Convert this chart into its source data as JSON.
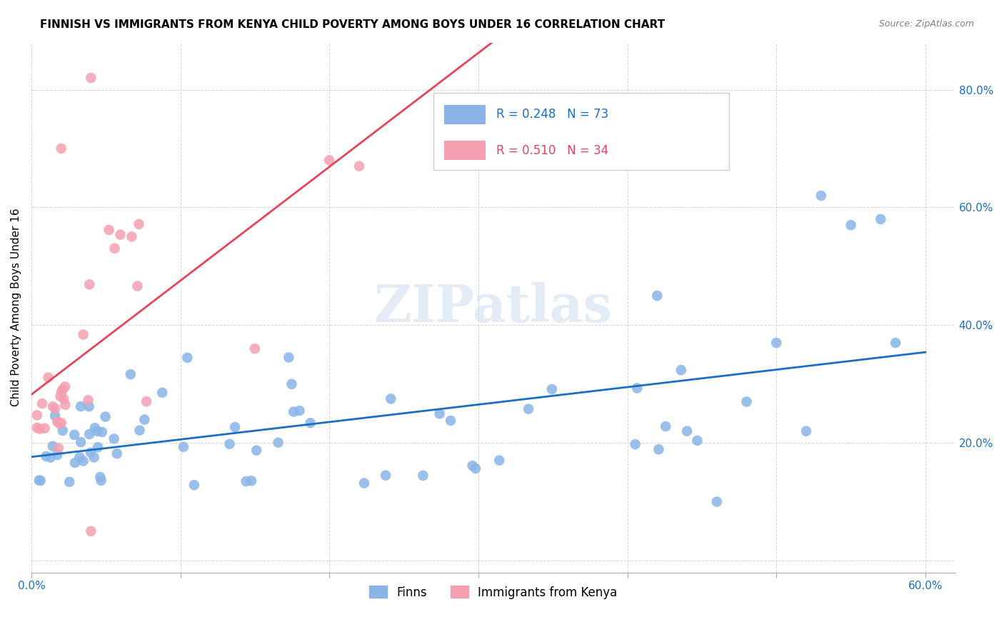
{
  "title": "FINNISH VS IMMIGRANTS FROM KENYA CHILD POVERTY AMONG BOYS UNDER 16 CORRELATION CHART",
  "source": "Source: ZipAtlas.com",
  "ylabel": "Child Poverty Among Boys Under 16",
  "xlim": [
    0.0,
    0.62
  ],
  "ylim": [
    -0.02,
    0.88
  ],
  "xticks": [
    0.0,
    0.1,
    0.2,
    0.3,
    0.4,
    0.5,
    0.6
  ],
  "xticklabels": [
    "0.0%",
    "",
    "",
    "",
    "",
    "",
    "60.0%"
  ],
  "yticks": [
    0.0,
    0.2,
    0.4,
    0.6,
    0.8
  ],
  "yticklabels_right": [
    "",
    "20.0%",
    "40.0%",
    "60.0%",
    "80.0%"
  ],
  "legend1_label": "Finns",
  "legend2_label": "Immigrants from Kenya",
  "R_finns": 0.248,
  "N_finns": 73,
  "R_kenya": 0.51,
  "N_kenya": 34,
  "color_finns": "#8ab4e8",
  "color_kenya": "#f4a0b0",
  "line_color_finns": "#1a6fc4",
  "line_color_kenya": "#e8435a",
  "watermark": "ZIPatlas"
}
